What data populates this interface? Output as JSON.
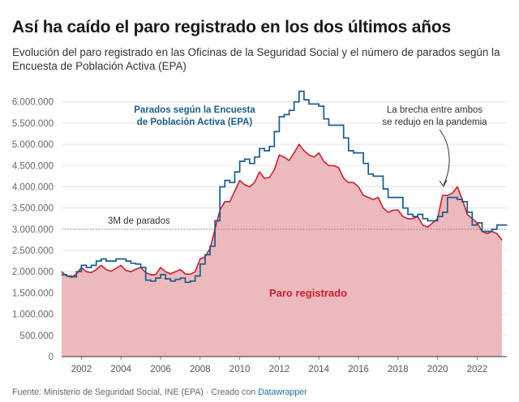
{
  "title": "Así ha caído el paro registrado en los dos últimos años",
  "subtitle": "Evolución del paro registrado en las Oficinas de la Seguridad Social y el número de parados según la Encuesta de Población Activa (EPA)",
  "footer": {
    "source": "Fuente: Ministerio de Seguridad Social, INE (EPA) · Creado con",
    "tool": "Datawrapper"
  },
  "colors": {
    "paro_line": "#c7202f",
    "paro_fill": "#ecb9bd",
    "epa_line": "#1a5c8a",
    "grid": "#e3e3e3"
  },
  "chart_data": {
    "type": "area",
    "ylim": [
      0,
      6300000
    ],
    "xlim": [
      2001.0,
      2023.5
    ],
    "grid": true,
    "yticks": [
      0,
      500000,
      1000000,
      1500000,
      2000000,
      2500000,
      3000000,
      3500000,
      4000000,
      4500000,
      5000000,
      5500000,
      6000000
    ],
    "ytick_labels": [
      "0",
      "500.000",
      "1.000.000",
      "1.500.000",
      "2.000.000",
      "2.500.000",
      "3.000.000",
      "3.500.000",
      "4.000.000",
      "4.500.000",
      "5.000.000",
      "5.500.000",
      "6.000.000"
    ],
    "xticks": [
      2002,
      2004,
      2006,
      2008,
      2010,
      2012,
      2014,
      2016,
      2018,
      2020,
      2022
    ],
    "xtick_labels": [
      "2002",
      "2004",
      "2006",
      "2008",
      "2010",
      "2012",
      "2014",
      "2016",
      "2018",
      "2020",
      "2022"
    ],
    "reference_line": {
      "y": 3000000,
      "label": "3M de parados"
    },
    "annotation": {
      "text": [
        "La brecha entre ambos",
        "se redujo en la pandemia"
      ]
    },
    "series": [
      {
        "name": "Paro registrado",
        "style": "area",
        "x": [
          2001.0,
          2001.25,
          2001.5,
          2001.75,
          2002.0,
          2002.25,
          2002.5,
          2002.75,
          2003.0,
          2003.25,
          2003.5,
          2003.75,
          2004.0,
          2004.25,
          2004.5,
          2004.75,
          2005.0,
          2005.25,
          2005.5,
          2005.75,
          2006.0,
          2006.25,
          2006.5,
          2006.75,
          2007.0,
          2007.25,
          2007.5,
          2007.75,
          2008.0,
          2008.25,
          2008.5,
          2008.75,
          2009.0,
          2009.25,
          2009.5,
          2009.75,
          2010.0,
          2010.25,
          2010.5,
          2010.75,
          2011.0,
          2011.25,
          2011.5,
          2011.75,
          2012.0,
          2012.25,
          2012.5,
          2012.75,
          2013.0,
          2013.25,
          2013.5,
          2013.75,
          2014.0,
          2014.25,
          2014.5,
          2014.75,
          2015.0,
          2015.25,
          2015.5,
          2015.75,
          2016.0,
          2016.25,
          2016.5,
          2016.75,
          2017.0,
          2017.25,
          2017.5,
          2017.75,
          2018.0,
          2018.25,
          2018.5,
          2018.75,
          2019.0,
          2019.25,
          2019.5,
          2019.75,
          2020.0,
          2020.25,
          2020.5,
          2020.75,
          2021.0,
          2021.25,
          2021.5,
          2021.75,
          2022.0,
          2022.25,
          2022.5,
          2022.75,
          2023.0,
          2023.25
        ],
        "values": [
          2000000,
          1900000,
          1870000,
          1950000,
          2100000,
          2000000,
          1980000,
          2050000,
          2150000,
          2050000,
          2010000,
          2080000,
          2150000,
          2030000,
          2000000,
          2060000,
          2100000,
          1980000,
          1930000,
          1930000,
          2100000,
          2000000,
          1950000,
          2000000,
          2050000,
          1950000,
          1940000,
          2000000,
          2300000,
          2350000,
          2550000,
          3000000,
          3450000,
          3650000,
          3650000,
          3900000,
          4150000,
          4050000,
          4000000,
          4100000,
          4350000,
          4200000,
          4220000,
          4400000,
          4750000,
          4700000,
          4620000,
          4800000,
          5000000,
          4850000,
          4750000,
          4700000,
          4800000,
          4600000,
          4500000,
          4500000,
          4450000,
          4200000,
          4100000,
          4100000,
          4000000,
          3800000,
          3750000,
          3700000,
          3750000,
          3500000,
          3400000,
          3450000,
          3450000,
          3300000,
          3250000,
          3250000,
          3300000,
          3100000,
          3050000,
          3150000,
          3250000,
          3800000,
          3800000,
          3850000,
          4000000,
          3700000,
          3350000,
          3250000,
          3150000,
          2950000,
          2900000,
          2950000,
          2900000,
          2750000
        ]
      },
      {
        "name": "Parados según la Encuesta de Población Activa (EPA)",
        "style": "step",
        "x": [
          2001.0,
          2001.25,
          2001.5,
          2001.75,
          2002.0,
          2002.25,
          2002.5,
          2002.75,
          2003.0,
          2003.25,
          2003.5,
          2003.75,
          2004.0,
          2004.25,
          2004.5,
          2004.75,
          2005.0,
          2005.25,
          2005.5,
          2005.75,
          2006.0,
          2006.25,
          2006.5,
          2006.75,
          2007.0,
          2007.25,
          2007.5,
          2007.75,
          2008.0,
          2008.25,
          2008.5,
          2008.75,
          2009.0,
          2009.25,
          2009.5,
          2009.75,
          2010.0,
          2010.25,
          2010.5,
          2010.75,
          2011.0,
          2011.25,
          2011.5,
          2011.75,
          2012.0,
          2012.25,
          2012.5,
          2012.75,
          2013.0,
          2013.25,
          2013.5,
          2013.75,
          2014.0,
          2014.25,
          2014.5,
          2014.75,
          2015.0,
          2015.25,
          2015.5,
          2015.75,
          2016.0,
          2016.25,
          2016.5,
          2016.75,
          2017.0,
          2017.25,
          2017.5,
          2017.75,
          2018.0,
          2018.25,
          2018.5,
          2018.75,
          2019.0,
          2019.25,
          2019.5,
          2019.75,
          2020.0,
          2020.25,
          2020.5,
          2020.75,
          2021.0,
          2021.25,
          2021.5,
          2021.75,
          2022.0,
          2022.25,
          2022.5,
          2022.75,
          2023.0,
          2023.25,
          2023.5
        ],
        "values": [
          1930000,
          1900000,
          1880000,
          2000000,
          2150000,
          2100000,
          2150000,
          2250000,
          2300000,
          2250000,
          2250000,
          2300000,
          2300000,
          2250000,
          2200000,
          2180000,
          2100000,
          1800000,
          1780000,
          1850000,
          1930000,
          1830000,
          1780000,
          1820000,
          1850000,
          1750000,
          1780000,
          1900000,
          2180000,
          2400000,
          2600000,
          3200000,
          4000000,
          4150000,
          4100000,
          4350000,
          4600000,
          4650000,
          4550000,
          4700000,
          4900000,
          4850000,
          4950000,
          5300000,
          5650000,
          5700000,
          5800000,
          6000000,
          6250000,
          6050000,
          5950000,
          5950000,
          5900000,
          5600000,
          5450000,
          5450000,
          5450000,
          5150000,
          4850000,
          4800000,
          4800000,
          4550000,
          4300000,
          4250000,
          4250000,
          3950000,
          3750000,
          3750000,
          3750000,
          3500000,
          3350000,
          3300000,
          3350000,
          3250000,
          3200000,
          3200000,
          3300000,
          3400000,
          3750000,
          3750000,
          3700000,
          3650000,
          3400000,
          3100000,
          3150000,
          2950000,
          2950000,
          3000000,
          3100000,
          3100000,
          3100000
        ]
      }
    ]
  },
  "labels": {
    "epa_series_label": [
      "Parados según la Encuesta",
      "de Población Activa (EPA)"
    ],
    "paro_series_label": "Paro registrado"
  }
}
